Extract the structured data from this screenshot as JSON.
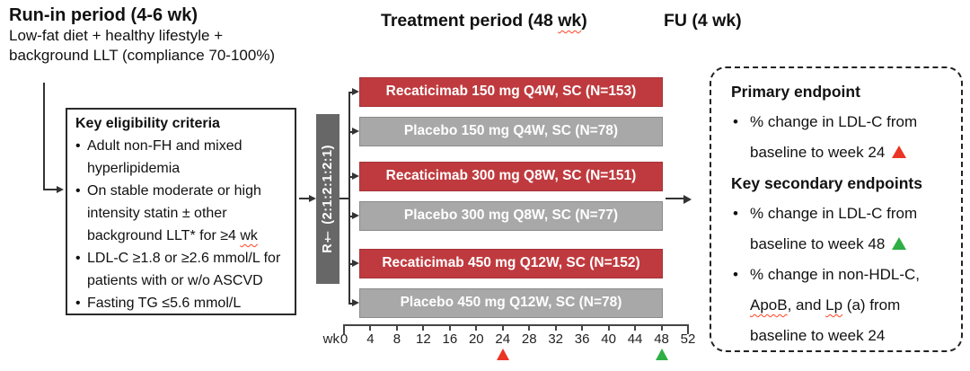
{
  "header": {
    "runin_title": "Run-in period (4-6 wk)",
    "runin_sub1": "Low-fat diet + healthy lifestyle +",
    "runin_sub2": "background LLT (compliance 70-100%)",
    "treatment_title_segments": [
      {
        "t": "Treatment period (48 "
      },
      {
        "t": "wk",
        "wavy": true
      },
      {
        "t": ")"
      }
    ],
    "fu_title": "FU (4 wk)"
  },
  "eligibility": {
    "title": "Key eligibility criteria",
    "items": [
      {
        "segments": [
          {
            "t": "Adult non-FH and mixed"
          },
          {
            "br": true
          },
          {
            "t": "hyperlipidemia"
          }
        ]
      },
      {
        "segments": [
          {
            "t": "On stable moderate or high"
          },
          {
            "br": true
          },
          {
            "t": "intensity statin ± other"
          },
          {
            "br": true
          },
          {
            "t": "background LLT* for ≥4 "
          },
          {
            "t": "wk",
            "wavy": true
          }
        ]
      },
      {
        "segments": [
          {
            "t": "LDL-C ≥1.8 or ≥2.6 mmol/L for"
          },
          {
            "br": true
          },
          {
            "t": "patients with or w/o ASCVD"
          }
        ]
      },
      {
        "segments": [
          {
            "t": "Fasting TG ≤5.6 mmol/L"
          }
        ]
      }
    ]
  },
  "randomization": {
    "label": "R† (2:1:2:1:2:1)"
  },
  "arms": [
    {
      "label": "Recaticimab 150 mg Q4W, SC (N=153)",
      "type": "drug"
    },
    {
      "label": "Placebo 150 mg Q4W, SC (N=78)",
      "type": "placebo"
    },
    {
      "label": "Recaticimab 300 mg Q8W, SC (N=151)",
      "type": "drug"
    },
    {
      "label": "Placebo 300 mg Q8W, SC (N=77)",
      "type": "placebo"
    },
    {
      "label": "Recaticimab 450 mg Q12W, SC (N=152)",
      "type": "drug"
    },
    {
      "label": "Placebo 450 mg Q12W, SC (N=78)",
      "type": "placebo"
    }
  ],
  "axis": {
    "unit_label": "wk",
    "tick_weeks": [
      0,
      4,
      8,
      12,
      16,
      20,
      24,
      28,
      32,
      36,
      40,
      44,
      48,
      52
    ],
    "range_weeks": [
      0,
      52
    ],
    "markers": [
      {
        "week": 24,
        "color": "#ea3424",
        "name": "week24-red-triangle-marker"
      },
      {
        "week": 48,
        "color": "#2fae44",
        "name": "week48-green-triangle-marker"
      }
    ]
  },
  "endpoints": {
    "lines": [
      {
        "header": "Primary endpoint"
      },
      {
        "segments": [
          {
            "t": "% change in LDL-C from"
          },
          {
            "br": true
          },
          {
            "t": "baseline to week 24 "
          },
          {
            "tri": "#ea3424",
            "name": "red-triangle-icon"
          }
        ]
      },
      {
        "header": "Key secondary endpoints"
      },
      {
        "segments": [
          {
            "t": "% change in LDL-C from"
          },
          {
            "br": true
          },
          {
            "t": "baseline to week 48 "
          },
          {
            "tri": "#2fae44",
            "name": "green-triangle-icon"
          }
        ]
      },
      {
        "segments": [
          {
            "t": "% change in non-HDL-C,"
          },
          {
            "br": true
          },
          {
            "t": "ApoB",
            "wavy": true
          },
          {
            "t": ", and "
          },
          {
            "t": "Lp",
            "wavy": true
          },
          {
            "t": " (a) from"
          },
          {
            "br": true
          },
          {
            "t": "baseline to week 24"
          }
        ]
      }
    ]
  },
  "colors": {
    "drug_bar": "#bf3a3e",
    "drug_border": "#a53338",
    "placebo_bar": "#a8a8a8",
    "placebo_border": "#8b8b8b",
    "randomization_bar": "#676767",
    "connector": "#333333",
    "marker_red": "#ea3424",
    "marker_green": "#2fae44"
  }
}
